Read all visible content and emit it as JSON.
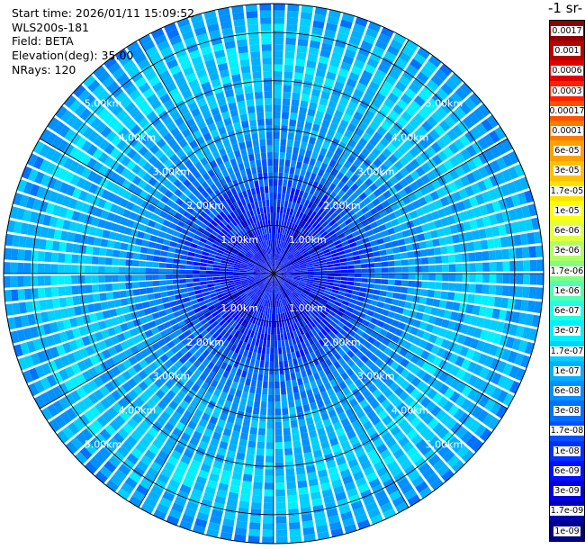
{
  "header": {
    "start_time": "Start time: 2026/01/11 15:09:52",
    "instrument": "WLS200s-181",
    "field": "Field: BETA",
    "elevation": "Elevation(deg): 35.00",
    "nrays": "NRays: 120"
  },
  "units_label": "-1 sr-",
  "colorbar": {
    "labels": [
      "0.0017",
      "0.001",
      "0.0006",
      "0.0003",
      "0.00017",
      "0.0001",
      "6e-05",
      "3e-05",
      "1.7e-05",
      "1e-05",
      "6e-06",
      "3e-06",
      "1.7e-06",
      "1e-06",
      "6e-07",
      "3e-07",
      "1.7e-07",
      "1e-07",
      "6e-08",
      "3e-08",
      "1.7e-08",
      "1e-08",
      "6e-09",
      "3e-09",
      "1.7e-09",
      "1e-09"
    ],
    "colors": [
      "#8b0000",
      "#b80000",
      "#e00000",
      "#ff2000",
      "#ff5000",
      "#ff7a00",
      "#ffa000",
      "#ffc000",
      "#ffe000",
      "#ffff00",
      "#e0ff40",
      "#b0ff60",
      "#80ff80",
      "#50ffb0",
      "#20ffe0",
      "#00f0ff",
      "#00d0ff",
      "#00b0ff",
      "#0090ff",
      "#0070ff",
      "#0050ff",
      "#0030ff",
      "#0010ff",
      "#0000e0",
      "#0000b0",
      "#000080"
    ]
  },
  "chart_data": {
    "type": "ppi_polar",
    "field": "BETA",
    "nrays": 120,
    "elevation_deg": 35.0,
    "range_rings_km": [
      1,
      2,
      3,
      4,
      5
    ],
    "ring_labels": [
      "1.00km",
      "2.00km",
      "3.00km",
      "4.00km",
      "5.00km"
    ],
    "max_range_km": 5.6,
    "grid_spokes_deg": [
      0,
      30,
      60,
      90,
      120,
      150,
      180,
      210,
      240,
      270,
      300,
      330
    ],
    "range_profile": [
      {
        "range_km": 0.2,
        "beta": 5e-09
      },
      {
        "range_km": 1.0,
        "beta": 6e-09
      },
      {
        "range_km": 1.6,
        "beta": 1e-08
      },
      {
        "range_km": 2.2,
        "beta": 3e-08
      },
      {
        "range_km": 2.8,
        "beta": 6e-08
      },
      {
        "range_km": 3.4,
        "beta": 1e-07
      },
      {
        "range_km": 4.0,
        "beta": 1.2e-07
      },
      {
        "range_km": 4.6,
        "beta": 1.7e-07
      },
      {
        "range_km": 5.0,
        "beta": 1.2e-07
      },
      {
        "range_km": 5.6,
        "beta": 6e-08
      }
    ]
  }
}
